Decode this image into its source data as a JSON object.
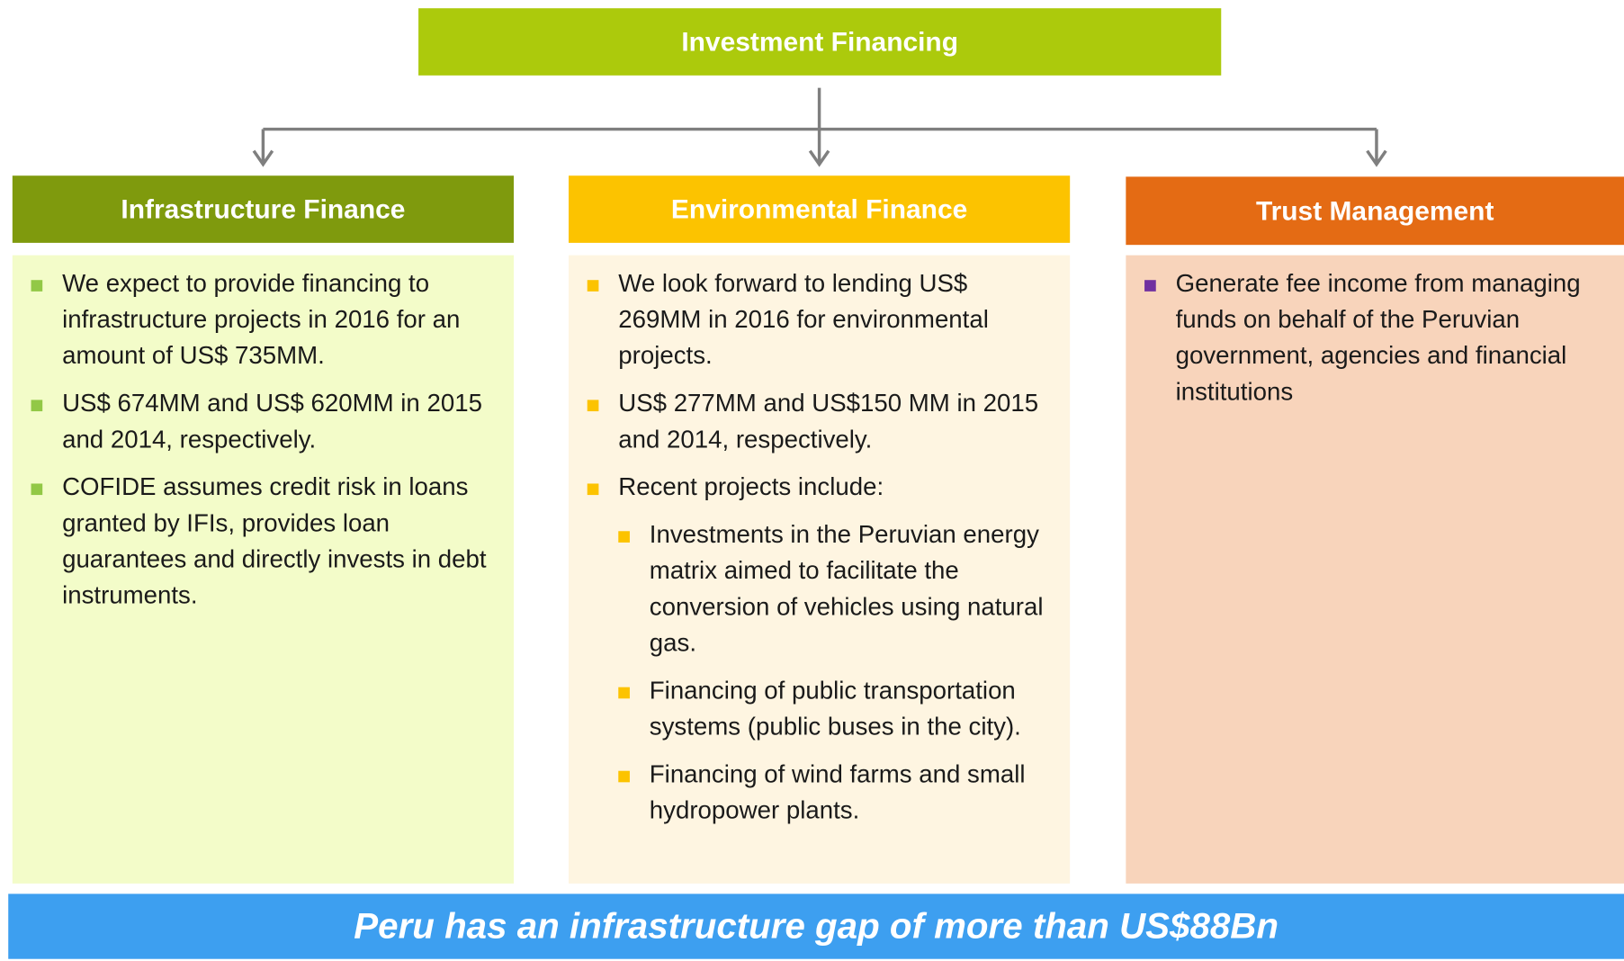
{
  "root": {
    "title": "Investment Financing"
  },
  "branches": [
    {
      "title": "Infrastructure Finance",
      "items": [
        {
          "text": "We expect to provide financing to infrastructure projects in 2016 for an amount of US$ 735MM."
        },
        {
          "text": "US$ 674MM and US$ 620MM in 2015 and 2014, respectively."
        },
        {
          "text": "COFIDE assumes credit risk in loans granted by IFIs, provides loan guarantees and directly invests in debt instruments."
        }
      ]
    },
    {
      "title": "Environmental Finance",
      "items": [
        {
          "text": "We look forward to lending US$ 269MM in 2016 for environmental projects."
        },
        {
          "text": "US$ 277MM and US$150 MM in 2015 and 2014, respectively."
        },
        {
          "text": "Recent projects include:",
          "subitems": [
            "Investments in the Peruvian energy matrix aimed to facilitate the conversion of vehicles using natural gas.",
            "Financing of public transportation systems (public buses in the city).",
            "Financing of wind farms and small hydropower plants."
          ]
        }
      ]
    },
    {
      "title": "Trust Management",
      "items": [
        {
          "text": "Generate fee income from managing funds on behalf of the Peruvian government, agencies and financial institutions"
        }
      ]
    }
  ],
  "footer": "Peru has an infrastructure gap of more than US$88Bn"
}
